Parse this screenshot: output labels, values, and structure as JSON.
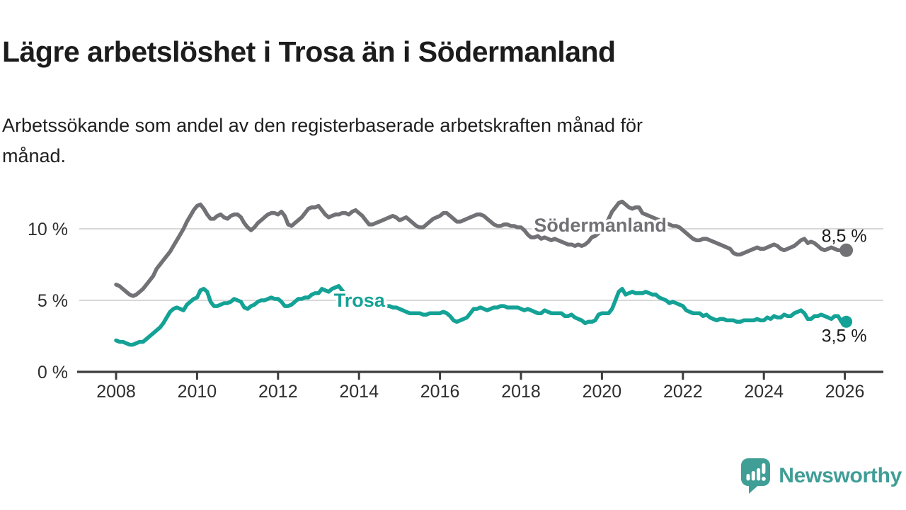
{
  "header": {
    "title": "Lägre arbetslöshet i Trosa än i Södermanland",
    "subtitle": "Arbetssökande som andel av den registerbaserade arbetskraften månad för månad."
  },
  "footer": {
    "brand": "Newsworthy",
    "brand_color": "#3f9e96",
    "logo_icon": "speech-bubble-bar-chart-icon"
  },
  "chart_data": {
    "type": "line",
    "title": "Lägre arbetslöshet i Trosa än i Södermanland",
    "subtitle": "Arbetssökande som andel av den registerbaserade arbetskraften månad för månad.",
    "xlabel": "",
    "ylabel": "",
    "grid": "horizontal-gridlines-at-5-and-10",
    "legend_position": "inline-labels-on-lines",
    "xlim": [
      2007.04,
      2026.95
    ],
    "ylim": [
      0,
      12.62
    ],
    "x_tick_years": [
      2008,
      2010,
      2012,
      2014,
      2016,
      2018,
      2020,
      2022,
      2024,
      2026
    ],
    "y_ticks": [
      {
        "value": 0,
        "label": "0 %"
      },
      {
        "value": 5,
        "label": "5 %"
      },
      {
        "value": 10,
        "label": "10 %"
      }
    ],
    "colors": {
      "soermanland_line": "#717176",
      "trosa_line": "#14a296",
      "gridline": "#d8d8d8",
      "axis": "#3c3c3c",
      "tick_label": "#2e2e2e",
      "end_label": "#1a1a1a"
    },
    "series": [
      {
        "name": "Södermanland",
        "color": "#717176",
        "inline_label": {
          "text": "Södermanland",
          "x": 2019.96,
          "y": 10.25
        },
        "end_label": "8,5 %",
        "end_label_side": "above",
        "end_value": 8.5,
        "start_year": 2008,
        "interval_months": 1,
        "values": [
          6.1,
          6.0,
          5.8,
          5.6,
          5.4,
          5.3,
          5.4,
          5.6,
          5.8,
          6.1,
          6.4,
          6.7,
          7.2,
          7.5,
          7.8,
          8.1,
          8.4,
          8.8,
          9.2,
          9.6,
          10.0,
          10.5,
          10.9,
          11.3,
          11.6,
          11.7,
          11.4,
          11.0,
          10.7,
          10.7,
          10.9,
          11.0,
          10.8,
          10.7,
          10.9,
          11.0,
          11.0,
          10.8,
          10.4,
          10.1,
          9.9,
          10.1,
          10.4,
          10.6,
          10.8,
          11.0,
          11.1,
          11.1,
          11.0,
          11.2,
          10.9,
          10.3,
          10.2,
          10.4,
          10.6,
          10.8,
          11.1,
          11.4,
          11.5,
          11.5,
          11.6,
          11.3,
          11.0,
          10.8,
          10.9,
          11.0,
          11.0,
          11.1,
          11.1,
          11.0,
          11.2,
          11.3,
          11.1,
          10.9,
          10.6,
          10.3,
          10.3,
          10.4,
          10.5,
          10.6,
          10.7,
          10.8,
          10.9,
          10.8,
          10.6,
          10.7,
          10.8,
          10.6,
          10.4,
          10.2,
          10.1,
          10.1,
          10.3,
          10.5,
          10.7,
          10.8,
          10.9,
          11.1,
          11.1,
          10.9,
          10.7,
          10.5,
          10.5,
          10.6,
          10.7,
          10.8,
          10.9,
          11.0,
          11.0,
          10.9,
          10.7,
          10.5,
          10.3,
          10.2,
          10.2,
          10.3,
          10.3,
          10.2,
          10.2,
          10.1,
          10.1,
          9.9,
          9.6,
          9.4,
          9.4,
          9.5,
          9.3,
          9.4,
          9.3,
          9.2,
          9.3,
          9.2,
          9.1,
          9.0,
          8.9,
          8.9,
          8.8,
          8.9,
          8.8,
          8.9,
          9.1,
          9.4,
          9.5,
          9.7,
          9.9,
          10.2,
          10.7,
          11.2,
          11.5,
          11.8,
          11.9,
          11.7,
          11.5,
          11.4,
          11.5,
          11.5,
          11.1,
          11.0,
          10.9,
          10.8,
          10.7,
          10.6,
          10.5,
          10.4,
          10.3,
          10.2,
          10.2,
          10.1,
          9.9,
          9.7,
          9.5,
          9.3,
          9.2,
          9.2,
          9.3,
          9.3,
          9.2,
          9.1,
          9.0,
          8.9,
          8.8,
          8.7,
          8.6,
          8.3,
          8.2,
          8.2,
          8.3,
          8.4,
          8.5,
          8.6,
          8.7,
          8.6,
          8.6,
          8.7,
          8.8,
          8.9,
          8.8,
          8.6,
          8.5,
          8.6,
          8.7,
          8.8,
          9.0,
          9.2,
          9.3,
          9.0,
          9.1,
          9.0,
          8.8,
          8.6,
          8.5,
          8.6,
          8.7,
          8.6,
          8.5,
          8.5,
          8.5
        ]
      },
      {
        "name": "Trosa",
        "color": "#14a296",
        "inline_label": {
          "text": "Trosa",
          "x": 2014.01,
          "y": 5.0
        },
        "end_label": "3,5 %",
        "end_label_side": "below",
        "end_value": 3.5,
        "start_year": 2008,
        "interval_months": 1,
        "values": [
          2.2,
          2.1,
          2.1,
          2.0,
          1.9,
          1.9,
          2.0,
          2.1,
          2.1,
          2.3,
          2.5,
          2.7,
          2.9,
          3.1,
          3.4,
          3.8,
          4.2,
          4.4,
          4.5,
          4.4,
          4.3,
          4.7,
          4.9,
          5.1,
          5.2,
          5.7,
          5.8,
          5.6,
          4.9,
          4.6,
          4.6,
          4.7,
          4.8,
          4.8,
          4.9,
          5.1,
          5.0,
          4.9,
          4.5,
          4.4,
          4.6,
          4.7,
          4.9,
          5.0,
          5.0,
          5.1,
          5.2,
          5.1,
          5.1,
          4.9,
          4.6,
          4.6,
          4.7,
          4.9,
          5.1,
          5.1,
          5.2,
          5.2,
          5.4,
          5.5,
          5.5,
          5.8,
          5.7,
          5.6,
          5.8,
          5.9,
          6.0,
          5.7,
          5.4,
          5.2,
          5.0,
          4.9,
          4.8,
          4.8,
          4.7,
          4.7,
          4.6,
          4.6,
          4.6,
          4.6,
          4.6,
          4.6,
          4.5,
          4.5,
          4.4,
          4.3,
          4.2,
          4.1,
          4.1,
          4.1,
          4.1,
          4.0,
          4.0,
          4.1,
          4.1,
          4.1,
          4.1,
          4.2,
          4.1,
          3.9,
          3.6,
          3.5,
          3.6,
          3.7,
          3.8,
          4.1,
          4.4,
          4.4,
          4.5,
          4.4,
          4.3,
          4.4,
          4.5,
          4.5,
          4.6,
          4.6,
          4.5,
          4.5,
          4.5,
          4.5,
          4.4,
          4.3,
          4.4,
          4.3,
          4.2,
          4.1,
          4.1,
          4.3,
          4.2,
          4.1,
          4.1,
          4.1,
          4.1,
          3.9,
          3.9,
          4.0,
          3.8,
          3.7,
          3.6,
          3.4,
          3.5,
          3.5,
          3.6,
          4.0,
          4.1,
          4.1,
          4.1,
          4.4,
          5.0,
          5.6,
          5.8,
          5.4,
          5.5,
          5.6,
          5.5,
          5.5,
          5.5,
          5.6,
          5.5,
          5.4,
          5.4,
          5.2,
          5.1,
          5.0,
          4.8,
          4.9,
          4.8,
          4.7,
          4.6,
          4.3,
          4.2,
          4.1,
          4.1,
          4.1,
          3.9,
          4.0,
          3.8,
          3.7,
          3.6,
          3.7,
          3.7,
          3.6,
          3.6,
          3.6,
          3.5,
          3.5,
          3.6,
          3.6,
          3.6,
          3.6,
          3.7,
          3.6,
          3.6,
          3.8,
          3.7,
          3.9,
          3.8,
          3.8,
          4.0,
          3.9,
          3.9,
          4.1,
          4.2,
          4.3,
          4.1,
          3.7,
          3.7,
          3.9,
          3.9,
          4.0,
          3.9,
          3.8,
          3.7,
          3.9,
          3.9,
          3.5,
          3.5
        ]
      }
    ]
  }
}
